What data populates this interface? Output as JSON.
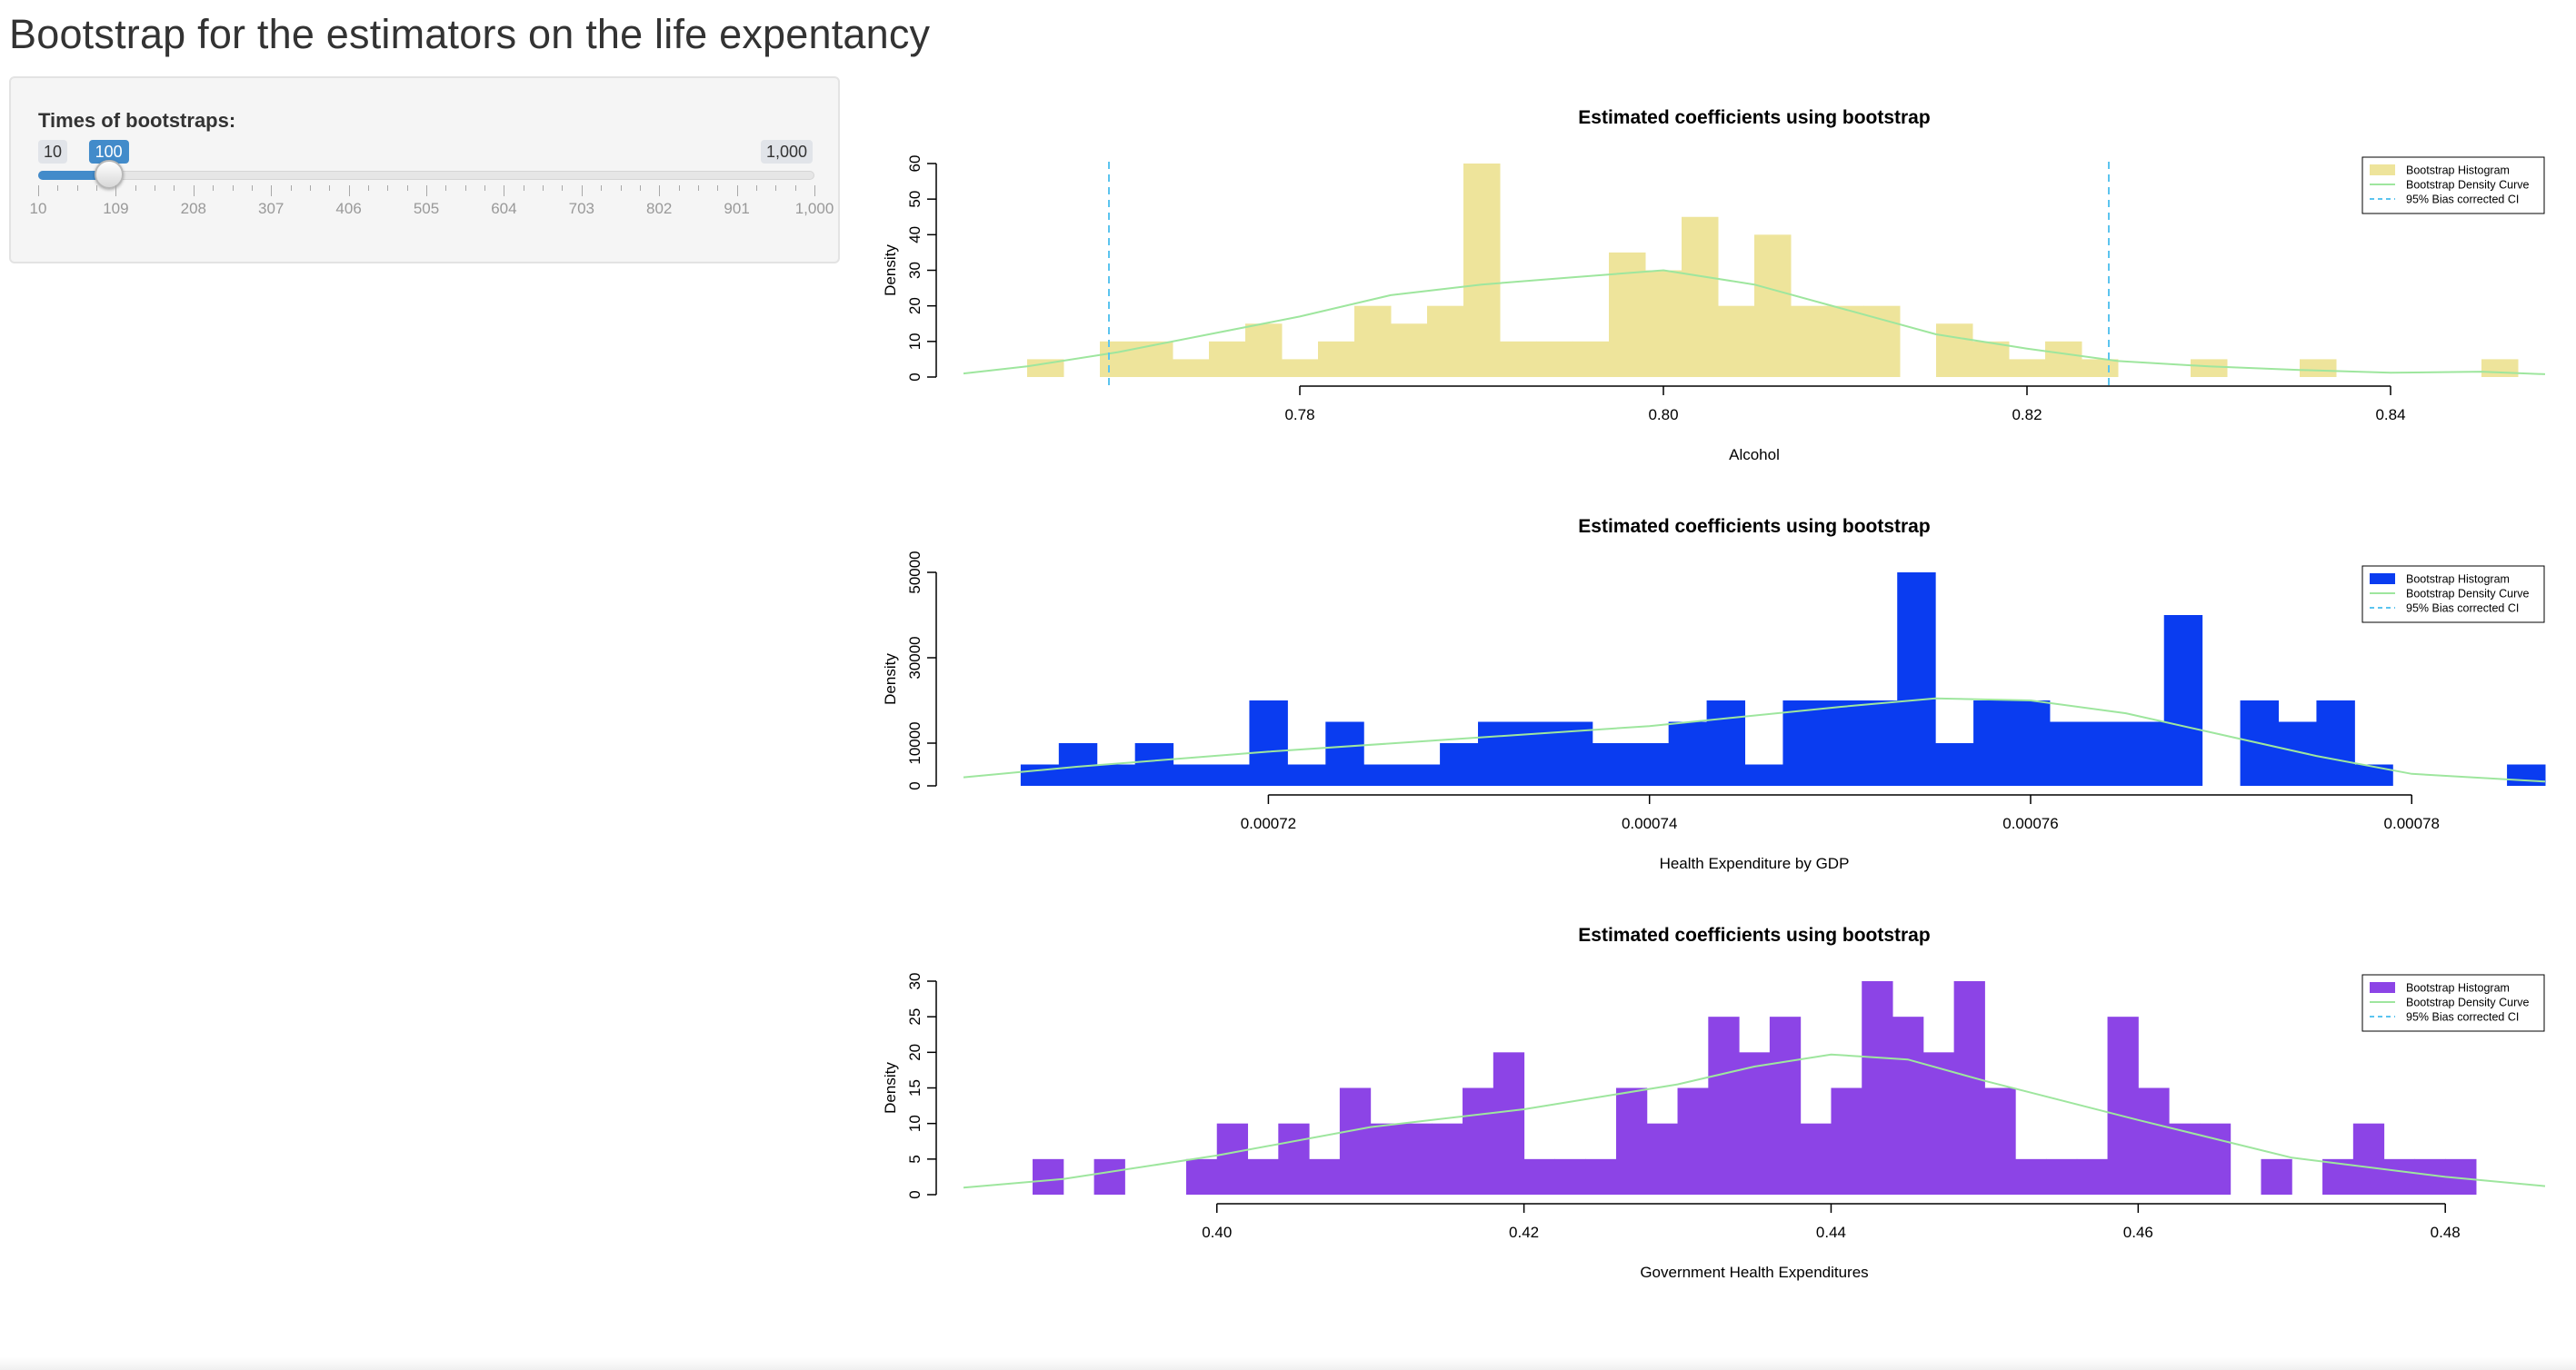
{
  "page": {
    "title": "Bootstrap for the estimators on the life expentancy"
  },
  "slider": {
    "label": "Times of bootstraps:",
    "min": 10,
    "max": 1000,
    "value": 100,
    "min_label": "10",
    "max_label": "1,000",
    "value_label": "100",
    "grid_labels": [
      "10",
      "109",
      "208",
      "307",
      "406",
      "505",
      "604",
      "703",
      "802",
      "901",
      "1,000"
    ]
  },
  "colors": {
    "alcohol_fill": "#eee49b",
    "gdp_fill": "#0a3cf0",
    "gov_fill": "#8c44e6",
    "density_curve": "#9ee69e",
    "ci_line": "#5bc4ef",
    "slider_accent": "#428bca"
  },
  "chart_data": [
    {
      "type": "bar",
      "title": "Estimated coefficients using bootstrap",
      "xlabel": "Alcohol",
      "ylabel": "Density",
      "xlim": [
        0.7615,
        0.8485
      ],
      "ylim": [
        0,
        60
      ],
      "xticks": [
        "0.78",
        "0.80",
        "0.82",
        "0.84"
      ],
      "xtick_values": [
        0.78,
        0.8,
        0.82,
        0.84
      ],
      "yticks": [
        "0",
        "10",
        "20",
        "30",
        "40",
        "50",
        "60"
      ],
      "ytick_values": [
        0,
        10,
        20,
        30,
        40,
        50,
        60
      ],
      "fill": "#eee49b",
      "bins": {
        "start": 0.765,
        "width": 0.002,
        "values": [
          5,
          0,
          10,
          10,
          5,
          10,
          15,
          5,
          10,
          20,
          15,
          20,
          60,
          10,
          10,
          10,
          35,
          30,
          45,
          20,
          40,
          20,
          20,
          20,
          0,
          15,
          10,
          5,
          10,
          5,
          0,
          0,
          5,
          0,
          0,
          5,
          0,
          0,
          0,
          0,
          5
        ]
      },
      "density": {
        "x": [
          0.7615,
          0.765,
          0.77,
          0.775,
          0.78,
          0.785,
          0.79,
          0.795,
          0.8,
          0.805,
          0.81,
          0.815,
          0.82,
          0.825,
          0.83,
          0.835,
          0.84,
          0.845,
          0.8485
        ],
        "y": [
          1,
          3,
          7,
          12,
          17,
          23,
          26,
          28,
          30,
          26,
          19,
          12,
          8,
          4.5,
          3,
          2,
          1.2,
          1.5,
          0.8
        ]
      },
      "ci": [
        0.7695,
        0.8245
      ],
      "legend": {
        "position": "top-right",
        "entries": [
          "Bootstrap Histogram",
          "Bootstrap Density Curve",
          "95% Bias corrected CI"
        ]
      }
    },
    {
      "type": "bar",
      "title": "Estimated coefficients using bootstrap",
      "xlabel": "Health Expenditure by GDP",
      "ylabel": "Density",
      "xlim": [
        0.000704,
        0.000787
      ],
      "ylim": [
        0,
        50000
      ],
      "xticks": [
        "0.00072",
        "0.00074",
        "0.00076",
        "0.00078"
      ],
      "xtick_values": [
        0.00072,
        0.00074,
        0.00076,
        0.00078
      ],
      "yticks": [
        "0",
        "10000",
        "30000",
        "50000"
      ],
      "ytick_values": [
        0,
        10000,
        30000,
        50000
      ],
      "fill": "#0a3cf0",
      "bins": {
        "start": 0.000707,
        "width": 2e-06,
        "values": [
          5000,
          10000,
          5000,
          10000,
          5000,
          5000,
          20000,
          5000,
          15000,
          5000,
          5000,
          10000,
          15000,
          15000,
          15000,
          10000,
          10000,
          15000,
          20000,
          5000,
          20000,
          20000,
          20000,
          50000,
          10000,
          20000,
          20000,
          15000,
          15000,
          15000,
          40000,
          0,
          20000,
          15000,
          20000,
          5000,
          0,
          0,
          0,
          5000
        ]
      },
      "density": {
        "x": [
          0.000704,
          0.00071,
          0.00072,
          0.00073,
          0.00074,
          0.00075,
          0.000755,
          0.00076,
          0.000765,
          0.00077,
          0.000775,
          0.00078,
          0.000787
        ],
        "y": [
          2000,
          4500,
          8000,
          11000,
          14000,
          18500,
          20500,
          20000,
          17000,
          12000,
          7000,
          2800,
          1000
        ]
      },
      "ci": [],
      "legend": {
        "position": "top-right",
        "entries": [
          "Bootstrap Histogram",
          "Bootstrap Density Curve",
          "95% Bias corrected CI"
        ]
      }
    },
    {
      "type": "bar",
      "title": "Estimated coefficients using bootstrap",
      "xlabel": "Government Health Expenditures",
      "ylabel": "Density",
      "xlim": [
        0.3835,
        0.4865
      ],
      "ylim": [
        0,
        30
      ],
      "xticks": [
        "0.40",
        "0.42",
        "0.44",
        "0.46",
        "0.48"
      ],
      "xtick_values": [
        0.4,
        0.42,
        0.44,
        0.46,
        0.48
      ],
      "yticks": [
        "0",
        "5",
        "10",
        "15",
        "20",
        "25",
        "30"
      ],
      "ytick_values": [
        0,
        5,
        10,
        15,
        20,
        25,
        30
      ],
      "fill": "#8c44e6",
      "bins": {
        "start": 0.388,
        "width": 0.002,
        "values": [
          5,
          0,
          5,
          0,
          0,
          5,
          10,
          5,
          10,
          5,
          15,
          10,
          10,
          10,
          15,
          20,
          5,
          5,
          5,
          15,
          10,
          15,
          25,
          20,
          25,
          10,
          15,
          30,
          25,
          20,
          30,
          15,
          5,
          5,
          5,
          25,
          15,
          10,
          10,
          0,
          5,
          0,
          5,
          10,
          5,
          5,
          5,
          0,
          0,
          0,
          5
        ]
      },
      "density": {
        "x": [
          0.3835,
          0.39,
          0.4,
          0.41,
          0.42,
          0.43,
          0.435,
          0.44,
          0.445,
          0.45,
          0.46,
          0.47,
          0.48,
          0.4865
        ],
        "y": [
          1,
          2.2,
          5.5,
          9.5,
          12,
          15.5,
          18,
          19.7,
          19,
          16,
          10.5,
          5.2,
          2.5,
          1.2
        ]
      },
      "ci": [],
      "legend": {
        "position": "top-right",
        "entries": [
          "Bootstrap Histogram",
          "Bootstrap Density Curve",
          "95% Bias corrected CI"
        ]
      }
    }
  ]
}
